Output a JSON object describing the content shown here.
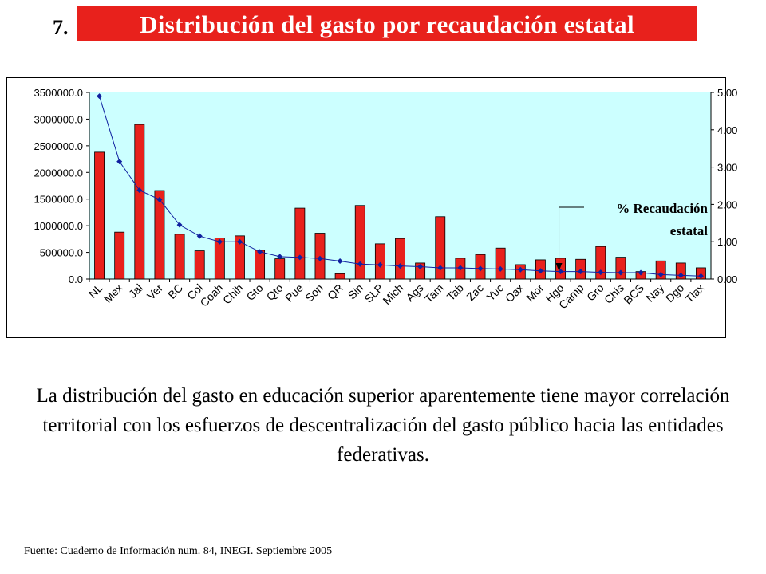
{
  "slide": {
    "number": "7.",
    "title": "Distribución del gasto por recaudación estatal",
    "body": "La distribución del gasto en educación superior aparentemente tiene mayor correlación territorial con los esfuerzos de descentralización del gasto público hacia las entidades federativas.",
    "source": "Fuente: Cuaderno de Información num. 84, INEGI. Septiembre 2005"
  },
  "chart_data": {
    "type": "bar",
    "title": "",
    "annotation": {
      "line1": "% Recaudación",
      "line2": "estatal"
    },
    "categories": [
      "NL",
      "Mex",
      "Jal",
      "Ver",
      "BC",
      "Col",
      "Coah",
      "Chih",
      "Gto",
      "Qto",
      "Pue",
      "Son",
      "QR",
      "Sin",
      "SLP",
      "Mich",
      "Ags",
      "Tam",
      "Tab",
      "Zac",
      "Yuc",
      "Oax",
      "Mor",
      "Hgo",
      "Camp",
      "Gro",
      "Chis",
      "BCS",
      "Nay",
      "Dgo",
      "Tlax"
    ],
    "series": [
      {
        "type": "bar",
        "axis": "left",
        "color": "#e8211c",
        "values": [
          2380000,
          880000,
          2900000,
          1660000,
          840000,
          530000,
          770000,
          810000,
          540000,
          380000,
          1330000,
          860000,
          100000,
          1380000,
          660000,
          760000,
          300000,
          1170000,
          390000,
          460000,
          580000,
          270000,
          360000,
          390000,
          370000,
          610000,
          410000,
          140000,
          340000,
          300000,
          210000
        ]
      },
      {
        "type": "line",
        "axis": "right",
        "color": "#1020a0",
        "values": [
          4.9,
          3.15,
          2.38,
          2.13,
          1.45,
          1.15,
          1.0,
          1.0,
          0.73,
          0.6,
          0.58,
          0.55,
          0.48,
          0.4,
          0.38,
          0.35,
          0.33,
          0.3,
          0.3,
          0.28,
          0.27,
          0.25,
          0.22,
          0.2,
          0.2,
          0.18,
          0.17,
          0.17,
          0.12,
          0.1,
          0.08
        ]
      }
    ],
    "y_left": {
      "min": 0,
      "max": 3500000,
      "ticks": [
        "0.0",
        "500000.0",
        "1000000.0",
        "1500000.0",
        "2000000.0",
        "2500000.0",
        "3000000.0",
        "3500000.0"
      ]
    },
    "y_right": {
      "min": 0,
      "max": 5,
      "ticks": [
        "0.00",
        "1.00",
        "2.00",
        "3.00",
        "4.00",
        "5.00"
      ]
    },
    "plot_background": "#ccffff",
    "grid": false
  }
}
